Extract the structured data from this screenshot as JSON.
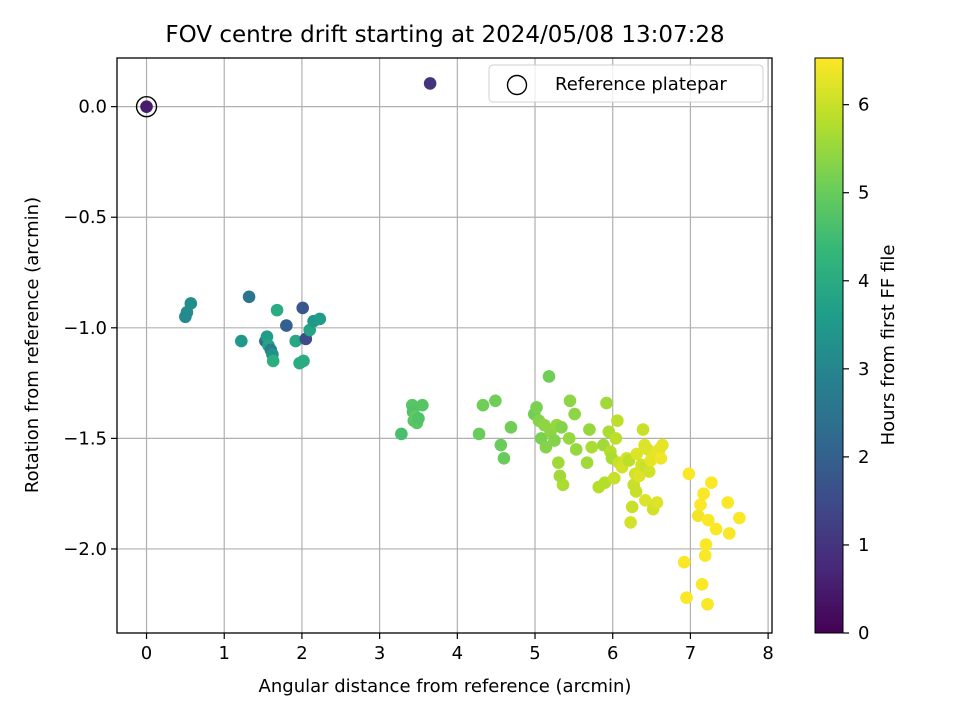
{
  "chart_data": {
    "type": "scatter",
    "title": "FOV centre drift starting at 2024/05/08 13:07:28",
    "xlabel": "Angular distance from reference (arcmin)",
    "ylabel": "Rotation from reference (arcmin)",
    "xlim": [
      -0.38,
      8.05
    ],
    "ylim": [
      -2.38,
      0.22
    ],
    "xticks": [
      0,
      1,
      2,
      3,
      4,
      5,
      6,
      7,
      8
    ],
    "xtick_labels": [
      "0",
      "1",
      "2",
      "3",
      "4",
      "5",
      "6",
      "7",
      "8"
    ],
    "yticks": [
      0.0,
      -0.5,
      -1.0,
      -1.5,
      -2.0
    ],
    "ytick_labels": [
      "0.0",
      "−0.5",
      "−1.0",
      "−1.5",
      "−2.0"
    ],
    "grid": true,
    "legend": {
      "placement": "top-right",
      "entries": [
        "Reference platepar"
      ]
    },
    "reference_point": {
      "x": 0.0,
      "y": 0.0
    },
    "colorbar": {
      "label": "Hours from first FF file",
      "range": [
        0,
        6.53
      ],
      "ticks": [
        0,
        1,
        2,
        3,
        4,
        5,
        6
      ],
      "tick_labels": [
        "0",
        "1",
        "2",
        "3",
        "4",
        "5",
        "6"
      ],
      "colormap": "viridis",
      "colors": [
        "#440154",
        "#482878",
        "#3e4989",
        "#31688e",
        "#26828e",
        "#1f9e89",
        "#35b779",
        "#6ece58",
        "#b5de2b",
        "#fde725"
      ]
    },
    "points": [
      [
        0.0,
        0.0,
        0.5
      ],
      [
        3.65,
        0.105,
        1.0
      ],
      [
        0.57,
        -0.89,
        3.2
      ],
      [
        0.52,
        -0.93,
        3.2
      ],
      [
        0.5,
        -0.95,
        3.1
      ],
      [
        1.32,
        -0.86,
        2.5
      ],
      [
        1.22,
        -1.06,
        3.5
      ],
      [
        1.53,
        -1.06,
        2.2
      ],
      [
        1.55,
        -1.04,
        3.6
      ],
      [
        1.57,
        -1.08,
        3.8
      ],
      [
        1.6,
        -1.1,
        2.8
      ],
      [
        1.62,
        -1.12,
        3.3
      ],
      [
        1.63,
        -1.15,
        4.1
      ],
      [
        1.68,
        -0.92,
        4.0
      ],
      [
        1.8,
        -0.99,
        2.0
      ],
      [
        1.92,
        -1.06,
        3.9
      ],
      [
        1.97,
        -1.16,
        4.0
      ],
      [
        2.02,
        -1.15,
        4.0
      ],
      [
        2.01,
        -0.91,
        1.8
      ],
      [
        2.05,
        -1.05,
        1.5
      ],
      [
        2.1,
        -1.01,
        3.8
      ],
      [
        2.15,
        -0.97,
        3.5
      ],
      [
        2.23,
        -0.96,
        3.6
      ],
      [
        3.28,
        -1.48,
        4.6
      ],
      [
        3.42,
        -1.35,
        4.8
      ],
      [
        3.43,
        -1.38,
        4.7
      ],
      [
        3.44,
        -1.42,
        4.8
      ],
      [
        3.46,
        -1.4,
        4.9
      ],
      [
        3.48,
        -1.43,
        4.8
      ],
      [
        3.5,
        -1.41,
        4.7
      ],
      [
        3.55,
        -1.35,
        4.8
      ],
      [
        4.28,
        -1.48,
        5.0
      ],
      [
        4.33,
        -1.35,
        5.1
      ],
      [
        4.49,
        -1.33,
        5.1
      ],
      [
        4.56,
        -1.53,
        5.0
      ],
      [
        4.6,
        -1.59,
        5.0
      ],
      [
        4.69,
        -1.45,
        5.1
      ],
      [
        4.99,
        -1.39,
        5.1
      ],
      [
        5.02,
        -1.36,
        5.2
      ],
      [
        5.05,
        -1.42,
        5.3
      ],
      [
        5.08,
        -1.5,
        5.2
      ],
      [
        5.12,
        -1.44,
        5.4
      ],
      [
        5.14,
        -1.54,
        5.3
      ],
      [
        5.18,
        -1.22,
        5.1
      ],
      [
        5.2,
        -1.47,
        5.4
      ],
      [
        5.25,
        -1.51,
        5.3
      ],
      [
        5.28,
        -1.44,
        5.5
      ],
      [
        5.3,
        -1.61,
        5.6
      ],
      [
        5.32,
        -1.67,
        5.6
      ],
      [
        5.34,
        -1.45,
        5.3
      ],
      [
        5.36,
        -1.71,
        5.7
      ],
      [
        5.44,
        -1.5,
        5.5
      ],
      [
        5.45,
        -1.33,
        5.4
      ],
      [
        5.51,
        -1.39,
        5.4
      ],
      [
        5.53,
        -1.55,
        5.5
      ],
      [
        5.67,
        -1.61,
        5.6
      ],
      [
        5.7,
        -1.46,
        5.5
      ],
      [
        5.73,
        -1.54,
        5.7
      ],
      [
        5.82,
        -1.72,
        5.8
      ],
      [
        5.88,
        -1.53,
        5.6
      ],
      [
        5.9,
        -1.7,
        5.8
      ],
      [
        5.92,
        -1.34,
        5.6
      ],
      [
        5.95,
        -1.47,
        5.7
      ],
      [
        5.97,
        -1.56,
        5.8
      ],
      [
        5.99,
        -1.59,
        5.7
      ],
      [
        6.02,
        -1.68,
        6.0
      ],
      [
        6.04,
        -1.5,
        5.9
      ],
      [
        6.06,
        -1.42,
        5.9
      ],
      [
        6.08,
        -1.61,
        6.0
      ],
      [
        6.12,
        -1.63,
        6.1
      ],
      [
        6.18,
        -1.59,
        6.1
      ],
      [
        6.21,
        -1.6,
        5.9
      ],
      [
        6.23,
        -1.88,
        6.1
      ],
      [
        6.25,
        -1.81,
        6.0
      ],
      [
        6.27,
        -1.71,
        6.0
      ],
      [
        6.29,
        -1.66,
        6.1
      ],
      [
        6.3,
        -1.74,
        6.0
      ],
      [
        6.31,
        -1.57,
        6.2
      ],
      [
        6.34,
        -1.67,
        6.2
      ],
      [
        6.37,
        -1.62,
        6.1
      ],
      [
        6.39,
        -1.46,
        6.0
      ],
      [
        6.41,
        -1.53,
        6.2
      ],
      [
        6.42,
        -1.78,
        6.2
      ],
      [
        6.43,
        -1.63,
        6.0
      ],
      [
        6.45,
        -1.55,
        6.2
      ],
      [
        6.47,
        -1.65,
        6.1
      ],
      [
        6.49,
        -1.6,
        6.3
      ],
      [
        6.52,
        -1.82,
        6.1
      ],
      [
        6.55,
        -1.57,
        6.3
      ],
      [
        6.57,
        -1.79,
        6.2
      ],
      [
        6.6,
        -1.55,
        6.3
      ],
      [
        6.62,
        -1.59,
        6.4
      ],
      [
        6.64,
        -1.53,
        6.3
      ],
      [
        6.92,
        -2.06,
        6.5
      ],
      [
        6.95,
        -2.22,
        6.5
      ],
      [
        6.98,
        -1.66,
        6.5
      ],
      [
        7.1,
        -1.85,
        6.4
      ],
      [
        7.13,
        -1.8,
        6.5
      ],
      [
        7.15,
        -2.16,
        6.5
      ],
      [
        7.17,
        -1.75,
        6.5
      ],
      [
        7.19,
        -2.03,
        6.5
      ],
      [
        7.2,
        -1.98,
        6.5
      ],
      [
        7.22,
        -2.25,
        6.5
      ],
      [
        7.23,
        -1.87,
        6.5
      ],
      [
        7.27,
        -1.7,
        6.5
      ],
      [
        7.33,
        -1.91,
        6.5
      ],
      [
        7.48,
        -1.79,
        6.5
      ],
      [
        7.5,
        -1.93,
        6.5
      ],
      [
        7.63,
        -1.86,
        6.5
      ]
    ]
  }
}
